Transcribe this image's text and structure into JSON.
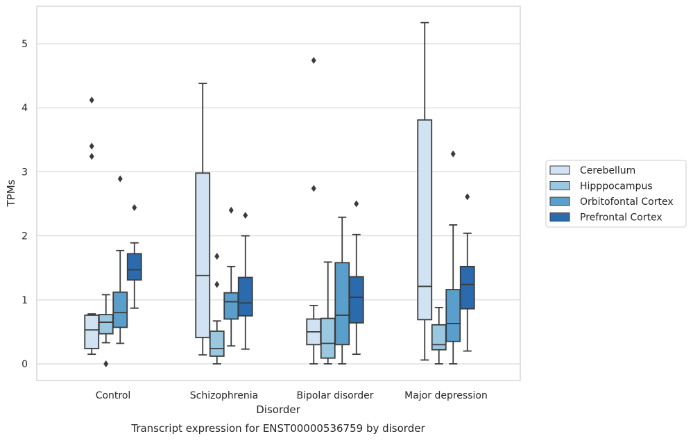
{
  "chart_data": {
    "type": "boxplot",
    "caption": "Transcript expression for ENST00000536759 by disorder",
    "xlabel": "Disorder",
    "ylabel": "TPMs",
    "ylim": [
      -0.25,
      5.6
    ],
    "yticks": [
      0,
      1,
      2,
      3,
      4,
      5
    ],
    "grid": "horizontal",
    "legend_position": "right",
    "categories": [
      "Control",
      "Schizophrenia",
      "Bipolar disorder",
      "Major depression"
    ],
    "series": [
      {
        "name": "Cerebellum",
        "color": "#d1e2f2",
        "boxes": [
          {
            "whislo": 0.15,
            "q1": 0.24,
            "med": 0.53,
            "q3": 0.76,
            "whishi": 0.78,
            "fliers": [
              4.12,
              3.4,
              3.24
            ]
          },
          {
            "whislo": 0.14,
            "q1": 0.41,
            "med": 1.38,
            "q3": 2.98,
            "whishi": 4.38,
            "fliers": []
          },
          {
            "whislo": 0.0,
            "q1": 0.3,
            "med": 0.5,
            "q3": 0.7,
            "whishi": 0.91,
            "fliers": [
              4.74,
              2.74
            ]
          },
          {
            "whislo": 0.06,
            "q1": 0.69,
            "med": 1.21,
            "q3": 3.81,
            "whishi": 5.33,
            "fliers": []
          }
        ]
      },
      {
        "name": "Hipppocampus",
        "color": "#9ac8e0",
        "boxes": [
          {
            "whislo": 0.33,
            "q1": 0.47,
            "med": 0.65,
            "q3": 0.77,
            "whishi": 1.08,
            "fliers": [
              0.0
            ]
          },
          {
            "whislo": 0.0,
            "q1": 0.12,
            "med": 0.24,
            "q3": 0.51,
            "whishi": 0.67,
            "fliers": [
              1.68,
              1.24
            ]
          },
          {
            "whislo": 0.0,
            "q1": 0.09,
            "med": 0.32,
            "q3": 0.71,
            "whishi": 1.59,
            "fliers": []
          },
          {
            "whislo": 0.0,
            "q1": 0.22,
            "med": 0.3,
            "q3": 0.61,
            "whishi": 0.88,
            "fliers": []
          }
        ]
      },
      {
        "name": "Orbitofontal Cortex",
        "color": "#5a9fcc",
        "boxes": [
          {
            "whislo": 0.32,
            "q1": 0.57,
            "med": 0.8,
            "q3": 1.12,
            "whishi": 1.77,
            "fliers": [
              2.89
            ]
          },
          {
            "whislo": 0.28,
            "q1": 0.7,
            "med": 0.97,
            "q3": 1.11,
            "whishi": 1.52,
            "fliers": [
              2.4
            ]
          },
          {
            "whislo": 0.0,
            "q1": 0.3,
            "med": 0.76,
            "q3": 1.58,
            "whishi": 2.29,
            "fliers": []
          },
          {
            "whislo": 0.0,
            "q1": 0.35,
            "med": 0.63,
            "q3": 1.16,
            "whishi": 2.17,
            "fliers": [
              3.28
            ]
          }
        ]
      },
      {
        "name": "Prefrontal Cortex",
        "color": "#2a6aad",
        "boxes": [
          {
            "whislo": 0.87,
            "q1": 1.31,
            "med": 1.47,
            "q3": 1.72,
            "whishi": 1.89,
            "fliers": [
              2.44
            ]
          },
          {
            "whislo": 0.23,
            "q1": 0.75,
            "med": 0.95,
            "q3": 1.35,
            "whishi": 2.0,
            "fliers": [
              2.32
            ]
          },
          {
            "whislo": 0.15,
            "q1": 0.64,
            "med": 1.04,
            "q3": 1.36,
            "whishi": 2.02,
            "fliers": [
              2.5
            ]
          },
          {
            "whislo": 0.2,
            "q1": 0.86,
            "med": 1.24,
            "q3": 1.52,
            "whishi": 2.04,
            "fliers": [
              2.61
            ]
          }
        ]
      }
    ]
  }
}
